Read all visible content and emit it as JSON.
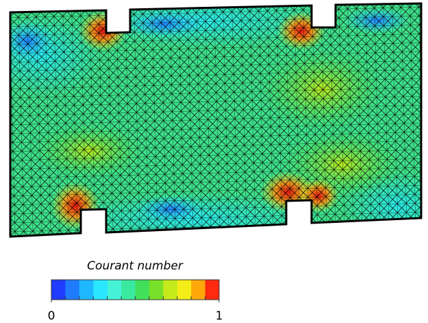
{
  "colorbar": {
    "title": "Courant number",
    "lim": [
      0,
      1
    ],
    "ticks": [
      0,
      1
    ],
    "colors": [
      "#1f3cff",
      "#1f7cff",
      "#1fb8ff",
      "#2ae6ff",
      "#45f2d6",
      "#3be8a0",
      "#42e05a",
      "#78e028",
      "#c4ea1c",
      "#f4ec16",
      "#ffa80a",
      "#ff2a10"
    ]
  }
}
